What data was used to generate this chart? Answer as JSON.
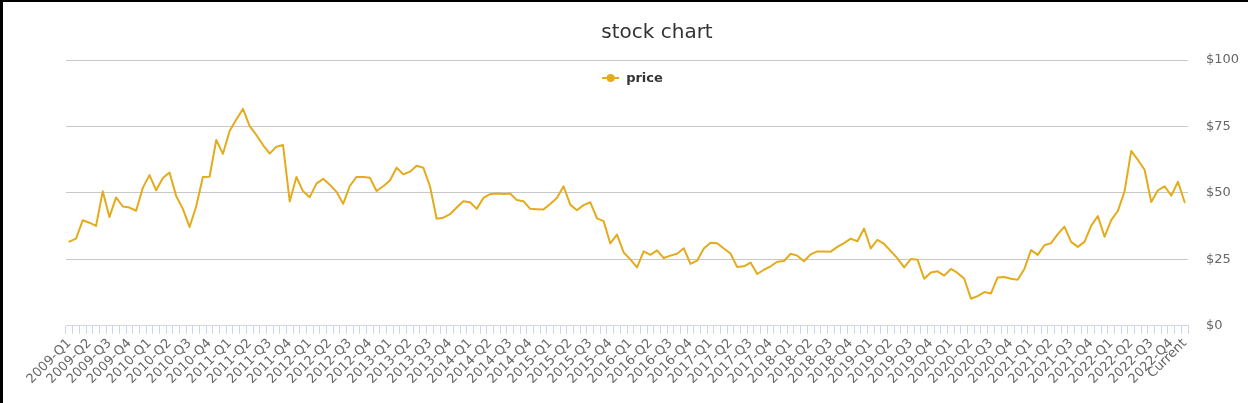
{
  "chart_data": {
    "type": "line",
    "title": "stock chart",
    "categories": [
      "2009-Q1",
      null,
      null,
      "2009-Q2",
      null,
      null,
      "2009-Q3",
      null,
      null,
      "2009-Q4",
      null,
      null,
      "2010-Q1",
      null,
      null,
      "2010-Q2",
      null,
      null,
      "2010-Q3",
      null,
      null,
      "2010-Q4",
      null,
      null,
      "2011-Q1",
      null,
      null,
      "2011-Q2",
      null,
      null,
      "2011-Q3",
      null,
      null,
      "2011-Q4",
      null,
      null,
      "2012-Q1",
      null,
      null,
      "2012-Q2",
      null,
      null,
      "2012-Q3",
      null,
      null,
      "2012-Q4",
      null,
      null,
      "2013-Q1",
      null,
      null,
      "2013-Q2",
      null,
      null,
      "2013-Q3",
      null,
      null,
      "2013-Q4",
      null,
      null,
      "2014-Q1",
      null,
      null,
      "2014-Q2",
      null,
      null,
      "2014-Q3",
      null,
      null,
      "2014-Q4",
      null,
      null,
      "2015-Q1",
      null,
      null,
      "2015-Q2",
      null,
      null,
      "2015-Q3",
      null,
      null,
      "2015-Q4",
      null,
      null,
      "2016-Q1",
      null,
      null,
      "2016-Q2",
      null,
      null,
      "2016-Q3",
      null,
      null,
      "2016-Q4",
      null,
      null,
      "2017-Q1",
      null,
      null,
      "2017-Q2",
      null,
      null,
      "2017-Q3",
      null,
      null,
      "2017-Q4",
      null,
      null,
      "2018-Q1",
      null,
      null,
      "2018-Q2",
      null,
      null,
      "2018-Q3",
      null,
      null,
      "2018-Q4",
      null,
      null,
      "2019-Q1",
      null,
      null,
      "2019-Q2",
      null,
      null,
      "2019-Q3",
      null,
      null,
      "2019-Q4",
      null,
      null,
      "2020-Q1",
      null,
      null,
      "2020-Q2",
      null,
      null,
      "2020-Q3",
      null,
      null,
      "2020-Q4",
      null,
      null,
      "2021-Q1",
      null,
      null,
      "2021-Q2",
      null,
      null,
      "2021-Q3",
      null,
      null,
      "2021-Q4",
      null,
      null,
      "2022-Q1",
      null,
      null,
      "2022-Q2",
      null,
      null,
      "2022-Q3",
      null,
      null,
      "2022-Q4",
      null,
      "Current"
    ],
    "series": [
      {
        "name": "price",
        "color": "#e4ac1c",
        "values": [
          31.7,
          32.8,
          39.7,
          38.8,
          37.6,
          50.6,
          40.9,
          48.3,
          44.9,
          44.5,
          43.3,
          51.9,
          56.7,
          51.0,
          55.6,
          57.7,
          48.8,
          44.0,
          37.2,
          45.0,
          56.0,
          56.1,
          69.9,
          64.7,
          73.3,
          77.6,
          81.6,
          75.1,
          71.8,
          68.0,
          64.8,
          67.4,
          68.0,
          46.8,
          56.0,
          50.6,
          48.4,
          53.5,
          55.3,
          53.1,
          50.4,
          45.9,
          52.6,
          56.0,
          56.0,
          55.7,
          50.7,
          52.5,
          54.7,
          59.5,
          57.0,
          58.0,
          60.2,
          59.5,
          52.5,
          40.3,
          40.7,
          42.0,
          44.5,
          46.9,
          46.5,
          44.0,
          48.1,
          49.5,
          49.8,
          49.6,
          49.8,
          47.3,
          46.9,
          44.0,
          43.9,
          43.8,
          45.8,
          48.1,
          52.5,
          45.6,
          43.5,
          45.4,
          46.5,
          40.4,
          39.4,
          31.0,
          34.3,
          27.6,
          25.0,
          22.0,
          28.0,
          26.7,
          28.4,
          25.5,
          26.4,
          27.1,
          29.2,
          23.3,
          24.5,
          29.1,
          31.3,
          31.1,
          29.1,
          27.2,
          22.1,
          22.4,
          23.8,
          19.5,
          21.1,
          22.4,
          24.1,
          24.4,
          27.1,
          26.4,
          24.3,
          26.9,
          28.0,
          28.0,
          27.9,
          29.7,
          31.1,
          32.8,
          31.8,
          36.6,
          29.1,
          32.3,
          30.8,
          28.1,
          25.4,
          22.0,
          25.1,
          24.9,
          17.7,
          20.1,
          20.5,
          18.9,
          21.4,
          19.9,
          17.7,
          10.2,
          11.2,
          12.7,
          12.2,
          18.2,
          18.4,
          17.7,
          17.3,
          21.4,
          28.5,
          26.7,
          30.3,
          31.1,
          34.5,
          37.3,
          31.6,
          29.7,
          31.6,
          37.6,
          41.3,
          33.5,
          39.8,
          43.2,
          50.6,
          65.8,
          62.4,
          58.7,
          46.6,
          51.0,
          52.5,
          49.0,
          54.2,
          46.5
        ]
      }
    ],
    "ylim": [
      0,
      100
    ],
    "yticks": [
      {
        "value": 0,
        "label": "$0"
      },
      {
        "value": 25,
        "label": "$25"
      },
      {
        "value": 50,
        "label": "$50"
      },
      {
        "value": 75,
        "label": "$75"
      },
      {
        "value": 100,
        "label": "$100"
      }
    ],
    "grid": "y",
    "legend": "top"
  }
}
